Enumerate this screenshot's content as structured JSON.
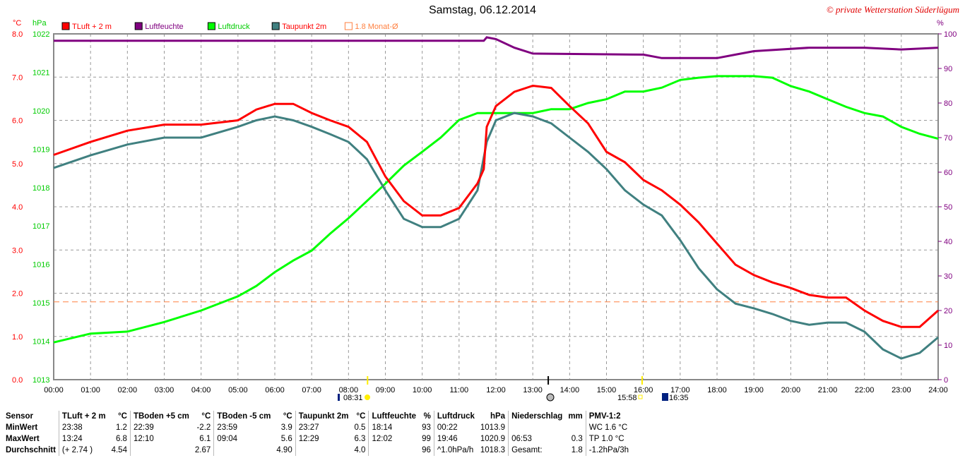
{
  "header": {
    "title": "Samstag, 06.12.2014",
    "copyright": "© private Wetterstation Süderlügum"
  },
  "chart_data": {
    "type": "line",
    "title": "Samstag, 06.12.2014",
    "axes": {
      "left_temp": {
        "unit": "°C",
        "range": [
          0,
          8
        ],
        "ticks": [
          "0.0",
          "1.0",
          "2.0",
          "3.0",
          "4.0",
          "5.0",
          "6.0",
          "7.0",
          "8.0"
        ]
      },
      "left_pressure": {
        "unit": "hPa",
        "range": [
          1013,
          1022
        ],
        "ticks": [
          "1013",
          "1014",
          "1015",
          "1016",
          "1017",
          "1018",
          "1019",
          "1020",
          "1021",
          "1022"
        ]
      },
      "right_humidity": {
        "unit": "%",
        "range": [
          0,
          100
        ],
        "ticks": [
          "0",
          "10",
          "20",
          "30",
          "40",
          "50",
          "60",
          "70",
          "80",
          "90",
          "100"
        ]
      },
      "x": {
        "range": [
          0,
          24
        ],
        "ticks": [
          "00:00",
          "01:00",
          "02:00",
          "03:00",
          "04:00",
          "05:00",
          "06:00",
          "07:00",
          "08:00",
          "09:00",
          "10:00",
          "11:00",
          "12:00",
          "13:00",
          "14:00",
          "15:00",
          "16:00",
          "17:00",
          "18:00",
          "19:00",
          "20:00",
          "21:00",
          "22:00",
          "23:00",
          "24:00"
        ]
      }
    },
    "legend": [
      {
        "name": "TLuft + 2 m",
        "color": "#ff0000",
        "text_color": "#ff0000"
      },
      {
        "name": "Luftfeuchte",
        "color": "#800080",
        "text_color": "#800080"
      },
      {
        "name": "Luftdruck",
        "color": "#00ff00",
        "text_color": "#00cc00"
      },
      {
        "name": "Taupunkt 2m",
        "color": "#408080",
        "text_color": "#ff0000"
      },
      {
        "name": "1.8 Monat-Ø",
        "color": "#ff8040",
        "text_color": "#ff8040",
        "hollow": true
      }
    ],
    "monthly_mean": 1.8,
    "series": [
      {
        "name": "TLuft + 2 m",
        "axis": "temp",
        "color": "#ff0000",
        "x": [
          0,
          1,
          2,
          3,
          4,
          5,
          5.5,
          6,
          6.5,
          7,
          7.5,
          8,
          8.5,
          9,
          9.5,
          10,
          10.5,
          11,
          11.5,
          11.67,
          11.75,
          12,
          12.5,
          13,
          13.5,
          14,
          14.5,
          15,
          15.5,
          16,
          16.5,
          17,
          17.5,
          18,
          18.5,
          19,
          19.5,
          20,
          20.5,
          21,
          21.5,
          22,
          22.5,
          23,
          23.5,
          24
        ],
        "y": [
          5.2,
          5.5,
          5.76,
          5.9,
          5.9,
          6.0,
          6.25,
          6.38,
          6.38,
          6.17,
          6.0,
          5.85,
          5.5,
          4.7,
          4.13,
          3.8,
          3.8,
          3.97,
          4.54,
          4.87,
          5.85,
          6.33,
          6.66,
          6.8,
          6.75,
          6.33,
          5.93,
          5.27,
          5.03,
          4.62,
          4.38,
          4.05,
          3.64,
          3.15,
          2.66,
          2.42,
          2.25,
          2.12,
          1.96,
          1.9,
          1.9,
          1.6,
          1.36,
          1.22,
          1.22,
          1.6
        ]
      },
      {
        "name": "Taupunkt 2m",
        "axis": "temp",
        "color": "#408080",
        "x": [
          0,
          1,
          2,
          3,
          4,
          5,
          5.5,
          6,
          6.5,
          7,
          7.5,
          8,
          8.5,
          9,
          9.5,
          10,
          10.5,
          11,
          11.5,
          11.75,
          12,
          12.5,
          13,
          13.5,
          14,
          14.5,
          15,
          15.5,
          16,
          16.5,
          17,
          17.5,
          18,
          18.5,
          19,
          19.5,
          20,
          20.5,
          21,
          21.5,
          22,
          22.5,
          23,
          23.5,
          24
        ],
        "y": [
          4.9,
          5.19,
          5.44,
          5.6,
          5.6,
          5.85,
          6.0,
          6.09,
          6.0,
          5.85,
          5.68,
          5.5,
          5.1,
          4.38,
          3.72,
          3.53,
          3.53,
          3.72,
          4.38,
          5.5,
          6.0,
          6.17,
          6.09,
          5.93,
          5.6,
          5.27,
          4.87,
          4.38,
          4.05,
          3.8,
          3.23,
          2.58,
          2.09,
          1.76,
          1.65,
          1.52,
          1.36,
          1.27,
          1.32,
          1.32,
          1.11,
          0.7,
          0.49,
          0.62,
          0.98
        ]
      },
      {
        "name": "Luftdruck",
        "axis": "pressure",
        "color": "#00ff00",
        "x": [
          0,
          1,
          2,
          3,
          4,
          5,
          5.5,
          6,
          6.5,
          7,
          7.5,
          8,
          8.5,
          9,
          9.5,
          10,
          10.5,
          11,
          11.5,
          12,
          12.5,
          13,
          13.5,
          14,
          14.5,
          15,
          15.5,
          16,
          16.5,
          17,
          17.5,
          18,
          19,
          19.5,
          20,
          20.5,
          21,
          21.5,
          22,
          22.5,
          23,
          23.5,
          24
        ],
        "y": [
          1013.97,
          1014.2,
          1014.25,
          1014.5,
          1014.8,
          1015.17,
          1015.44,
          1015.8,
          1016.1,
          1016.36,
          1016.8,
          1017.2,
          1017.65,
          1018.1,
          1018.57,
          1018.93,
          1019.3,
          1019.76,
          1019.94,
          1019.94,
          1019.94,
          1019.94,
          1020.04,
          1020.04,
          1020.2,
          1020.3,
          1020.5,
          1020.5,
          1020.6,
          1020.8,
          1020.86,
          1020.9,
          1020.9,
          1020.86,
          1020.64,
          1020.5,
          1020.3,
          1020.1,
          1019.94,
          1019.85,
          1019.58,
          1019.4,
          1019.27
        ]
      },
      {
        "name": "Luftfeuchte",
        "axis": "humidity",
        "color": "#800080",
        "x": [
          0,
          11.67,
          11.75,
          12,
          12.5,
          13,
          16,
          16.5,
          18,
          18.5,
          19,
          20.5,
          22,
          23,
          24
        ],
        "y": [
          98,
          98,
          99,
          98.5,
          96,
          94.3,
          94,
          93,
          93,
          94,
          95,
          96,
          96,
          95.5,
          96
        ]
      }
    ],
    "markers": {
      "sunrise": "08:31",
      "sunset": "15:58",
      "moonset": "16:35"
    }
  },
  "stats": {
    "headers": [
      "Sensor",
      "TLuft + 2 m",
      "°C",
      "TBoden +5 cm",
      "°C",
      "TBoden -5 cm",
      "°C",
      "Taupunkt 2m",
      "°C",
      "Luftfeuchte",
      "%",
      "Luftdruck",
      "hPa",
      "Niederschlag",
      "mm",
      "PMV-1:2"
    ],
    "rows": [
      [
        "MinWert",
        "23:38",
        "1.2",
        "22:39",
        "-2.2",
        "23:59",
        "3.9",
        "23:27",
        "0.5",
        "18:14",
        "93",
        "00:22",
        "1013.9",
        "",
        "",
        "WC 1.6 °C"
      ],
      [
        "MaxWert",
        "13:24",
        "6.8",
        "12:10",
        "6.1",
        "09:04",
        "5.6",
        "12:29",
        "6.3",
        "12:02",
        "99",
        "19:46",
        "1020.9",
        "06:53",
        "0.3",
        "TP 1.0 °C"
      ],
      [
        "Durchschnitt",
        "(+ 2.74 )",
        "4.54",
        "",
        "2.67",
        "",
        "4.90",
        "",
        "4.0",
        "",
        "96",
        "^1.0hPa/h",
        "1018.3",
        "Gesamt:",
        "1.8",
        "-1.2hPa/3h"
      ]
    ]
  }
}
